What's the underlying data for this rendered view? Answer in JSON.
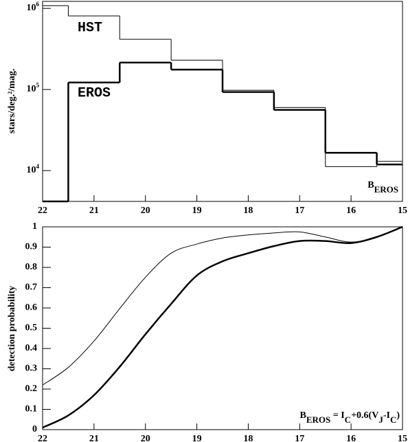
{
  "chart_data": [
    {
      "type": "histogram",
      "ylabel": "stars/deg.²/mag.",
      "annotation": [
        {
          "text": "B"
        },
        {
          "sub": "EROS"
        }
      ],
      "bins": [
        22,
        21.5,
        20.5,
        19.5,
        18.5,
        17.5,
        16.5,
        15.5,
        15
      ],
      "series": [
        {
          "name": "HST",
          "color": "#000000",
          "line_width": 1,
          "values": [
            1080000,
            807000,
            416000,
            230000,
            98000,
            60000,
            11200,
            13000
          ]
        },
        {
          "name": "EROS",
          "color": "#000000",
          "line_width": 2.5,
          "values": [
            4170,
            122000,
            215000,
            176000,
            93000,
            56000,
            16600,
            11900
          ]
        }
      ],
      "xlim": [
        22,
        15
      ],
      "xticks": [
        22,
        21,
        20,
        19,
        18,
        17,
        16,
        15
      ],
      "ylim": [
        4170,
        1220000
      ],
      "log_y": true,
      "yticks": [
        {
          "value": 10000,
          "label": "10",
          "exponent": "4"
        },
        {
          "value": 100000,
          "label": "10",
          "exponent": "5"
        },
        {
          "value": 1000000,
          "label": "10",
          "exponent": "6"
        }
      ]
    },
    {
      "type": "line",
      "ylabel": "detection probability",
      "annotation": [
        {
          "text": "B"
        },
        {
          "sub": "EROS"
        },
        {
          "text": " = I"
        },
        {
          "sub": "C"
        },
        {
          "text": "+0.6(V"
        },
        {
          "sub": "J"
        },
        {
          "text": "-I"
        },
        {
          "sub": "C"
        },
        {
          "text": ")"
        }
      ],
      "x": [
        22,
        21.5,
        21,
        20.5,
        20,
        19.5,
        19,
        18.5,
        18,
        17.5,
        17,
        16.5,
        16,
        15.5,
        15
      ],
      "series": [
        {
          "color": "#000000",
          "line_width": 1,
          "values": [
            0.22,
            0.307,
            0.437,
            0.597,
            0.751,
            0.87,
            0.915,
            0.945,
            0.96,
            0.97,
            0.975,
            0.95,
            0.925,
            0.95,
            1.0
          ]
        },
        {
          "color": "#000000",
          "line_width": 2.5,
          "values": [
            0.01,
            0.07,
            0.17,
            0.31,
            0.47,
            0.62,
            0.76,
            0.83,
            0.87,
            0.905,
            0.93,
            0.93,
            0.92,
            0.95,
            1.0
          ]
        }
      ],
      "xlim": [
        22,
        15
      ],
      "xticks": [
        22,
        21,
        20,
        19,
        18,
        17,
        16,
        15
      ],
      "ylim": [
        0,
        1
      ],
      "yticks": [
        0,
        0.1,
        0.2,
        0.3,
        0.4,
        0.5,
        0.6,
        0.7,
        0.8,
        0.9,
        1
      ]
    }
  ]
}
